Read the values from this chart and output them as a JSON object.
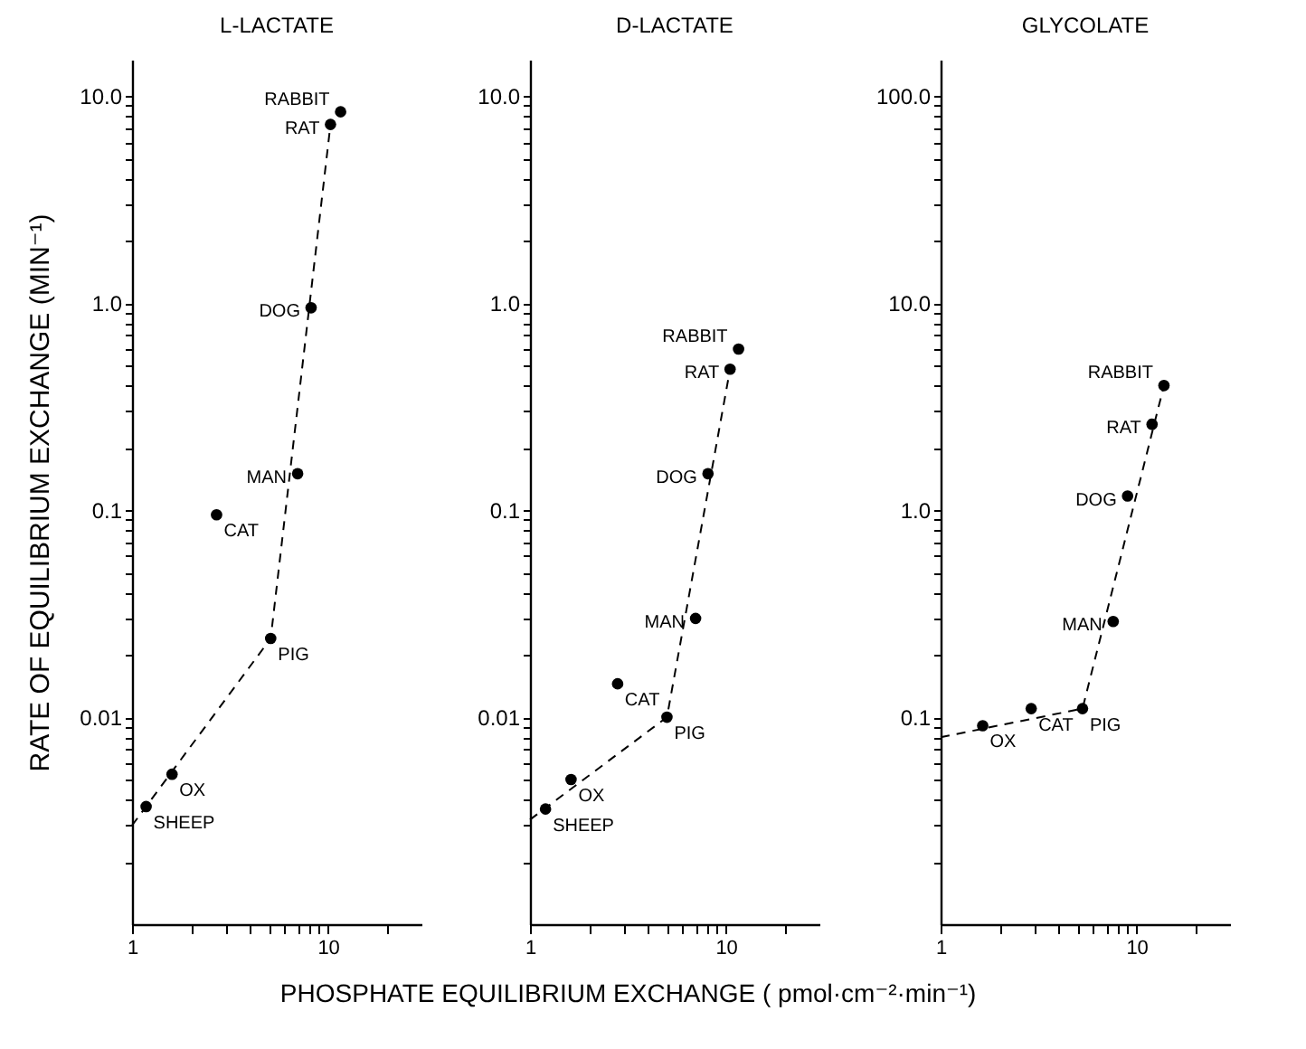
{
  "chart_data": [
    {
      "type": "scatter",
      "title": "L-LACTATE",
      "ylabel": "RATE OF EQUILIBRIUM EXCHANGE (MIN⁻¹)",
      "xlabel": "PHOSPHATE EQUILIBRIUM EXCHANGE   ( pmol·cm⁻²·min⁻¹)",
      "log": "xy",
      "grid": false,
      "marker": "circle",
      "xlim": [
        1,
        30
      ],
      "ylim": [
        0.001,
        15
      ],
      "xticks": [
        {
          "value": 1,
          "label": "1"
        },
        {
          "value": 2,
          "label": null
        },
        {
          "value": 3,
          "label": null
        },
        {
          "value": 4,
          "label": null
        },
        {
          "value": 5,
          "label": null
        },
        {
          "value": 6,
          "label": null
        },
        {
          "value": 7,
          "label": null
        },
        {
          "value": 8,
          "label": null
        },
        {
          "value": 9,
          "label": null
        },
        {
          "value": 10,
          "label": "10"
        },
        {
          "value": 20,
          "label": null
        }
      ],
      "yticks": [
        {
          "value": 0.002,
          "label": null
        },
        {
          "value": 0.003,
          "label": null
        },
        {
          "value": 0.004,
          "label": null
        },
        {
          "value": 0.005,
          "label": null
        },
        {
          "value": 0.006,
          "label": null
        },
        {
          "value": 0.007,
          "label": null
        },
        {
          "value": 0.008,
          "label": null
        },
        {
          "value": 0.009,
          "label": null
        },
        {
          "value": 0.01,
          "label": "0.01"
        },
        {
          "value": 0.02,
          "label": null
        },
        {
          "value": 0.03,
          "label": null
        },
        {
          "value": 0.04,
          "label": null
        },
        {
          "value": 0.05,
          "label": null
        },
        {
          "value": 0.06,
          "label": null
        },
        {
          "value": 0.07,
          "label": null
        },
        {
          "value": 0.08,
          "label": null
        },
        {
          "value": 0.09,
          "label": null
        },
        {
          "value": 0.1,
          "label": "0.1"
        },
        {
          "value": 0.2,
          "label": null
        },
        {
          "value": 0.3,
          "label": null
        },
        {
          "value": 0.4,
          "label": null
        },
        {
          "value": 0.5,
          "label": null
        },
        {
          "value": 0.6,
          "label": null
        },
        {
          "value": 0.7,
          "label": null
        },
        {
          "value": 0.8,
          "label": null
        },
        {
          "value": 0.9,
          "label": null
        },
        {
          "value": 1,
          "label": "1.0"
        },
        {
          "value": 2,
          "label": null
        },
        {
          "value": 3,
          "label": null
        },
        {
          "value": 4,
          "label": null
        },
        {
          "value": 5,
          "label": null
        },
        {
          "value": 6,
          "label": null
        },
        {
          "value": 7,
          "label": null
        },
        {
          "value": 8,
          "label": null
        },
        {
          "value": 9,
          "label": null
        },
        {
          "value": 10,
          "label": "10.0"
        }
      ],
      "series": [
        {
          "type": "scatter",
          "color": "#000000",
          "x": [
            11.6,
            10.3,
            8.2,
            7.0,
            2.7,
            5.1,
            1.6,
            1.18
          ],
          "values": [
            8.4,
            7.3,
            0.95,
            0.15,
            0.095,
            0.024,
            0.0053,
            0.0037
          ]
        },
        {
          "type": "line",
          "line_style": "dashed",
          "marker": "none",
          "color": "#000000",
          "x": [
            1,
            5.1,
            10.3
          ],
          "values": [
            0.003,
            0.024,
            7.3
          ]
        }
      ],
      "annotations": [
        {
          "text": "RABBIT",
          "x": 11.6,
          "y": 8.4
        },
        {
          "text": "RAT",
          "x": 10.3,
          "y": 7.3
        },
        {
          "text": "DOG",
          "x": 8.2,
          "y": 0.95
        },
        {
          "text": "MAN",
          "x": 7.0,
          "y": 0.15
        },
        {
          "text": "CAT",
          "x": 2.7,
          "y": 0.095
        },
        {
          "text": "PIG",
          "x": 5.1,
          "y": 0.024
        },
        {
          "text": "OX",
          "x": 1.6,
          "y": 0.0053
        },
        {
          "text": "SHEEP",
          "x": 1.18,
          "y": 0.0037
        }
      ]
    },
    {
      "type": "scatter",
      "title": "D-LACTATE",
      "log": "xy",
      "grid": false,
      "marker": "circle",
      "xlim": [
        1,
        30
      ],
      "ylim": [
        0.001,
        15
      ],
      "xticks": [
        {
          "value": 1,
          "label": "1"
        },
        {
          "value": 2,
          "label": null
        },
        {
          "value": 3,
          "label": null
        },
        {
          "value": 4,
          "label": null
        },
        {
          "value": 5,
          "label": null
        },
        {
          "value": 6,
          "label": null
        },
        {
          "value": 7,
          "label": null
        },
        {
          "value": 8,
          "label": null
        },
        {
          "value": 9,
          "label": null
        },
        {
          "value": 10,
          "label": "10"
        },
        {
          "value": 20,
          "label": null
        }
      ],
      "yticks": [
        {
          "value": 0.002,
          "label": null
        },
        {
          "value": 0.003,
          "label": null
        },
        {
          "value": 0.004,
          "label": null
        },
        {
          "value": 0.005,
          "label": null
        },
        {
          "value": 0.006,
          "label": null
        },
        {
          "value": 0.007,
          "label": null
        },
        {
          "value": 0.008,
          "label": null
        },
        {
          "value": 0.009,
          "label": null
        },
        {
          "value": 0.01,
          "label": "0.01"
        },
        {
          "value": 0.02,
          "label": null
        },
        {
          "value": 0.03,
          "label": null
        },
        {
          "value": 0.04,
          "label": null
        },
        {
          "value": 0.05,
          "label": null
        },
        {
          "value": 0.06,
          "label": null
        },
        {
          "value": 0.07,
          "label": null
        },
        {
          "value": 0.08,
          "label": null
        },
        {
          "value": 0.09,
          "label": null
        },
        {
          "value": 0.1,
          "label": "0.1"
        },
        {
          "value": 0.2,
          "label": null
        },
        {
          "value": 0.3,
          "label": null
        },
        {
          "value": 0.4,
          "label": null
        },
        {
          "value": 0.5,
          "label": null
        },
        {
          "value": 0.6,
          "label": null
        },
        {
          "value": 0.7,
          "label": null
        },
        {
          "value": 0.8,
          "label": null
        },
        {
          "value": 0.9,
          "label": null
        },
        {
          "value": 1,
          "label": "1.0"
        },
        {
          "value": 2,
          "label": null
        },
        {
          "value": 3,
          "label": null
        },
        {
          "value": 4,
          "label": null
        },
        {
          "value": 5,
          "label": null
        },
        {
          "value": 6,
          "label": null
        },
        {
          "value": 7,
          "label": null
        },
        {
          "value": 8,
          "label": null
        },
        {
          "value": 9,
          "label": null
        },
        {
          "value": 10,
          "label": "10.0"
        }
      ],
      "series": [
        {
          "type": "scatter",
          "color": "#000000",
          "x": [
            11.6,
            10.5,
            8.1,
            7.0,
            2.8,
            5.0,
            1.62,
            1.2
          ],
          "values": [
            0.6,
            0.48,
            0.15,
            0.03,
            0.0145,
            0.01,
            0.005,
            0.0036
          ]
        },
        {
          "type": "line",
          "line_style": "dashed",
          "marker": "none",
          "color": "#000000",
          "x": [
            1,
            5.0,
            10.5
          ],
          "values": [
            0.0032,
            0.01,
            0.48
          ]
        }
      ],
      "annotations": [
        {
          "text": "RABBIT",
          "x": 11.6,
          "y": 0.6
        },
        {
          "text": "RAT",
          "x": 10.5,
          "y": 0.48
        },
        {
          "text": "DOG",
          "x": 8.1,
          "y": 0.15
        },
        {
          "text": "MAN",
          "x": 7.0,
          "y": 0.03
        },
        {
          "text": "CAT",
          "x": 2.8,
          "y": 0.0145
        },
        {
          "text": "PIG",
          "x": 5.0,
          "y": 0.01
        },
        {
          "text": "OX",
          "x": 1.62,
          "y": 0.005
        },
        {
          "text": "SHEEP",
          "x": 1.2,
          "y": 0.0036
        }
      ]
    },
    {
      "type": "scatter",
      "title": "GLYCOLATE",
      "log": "xy",
      "grid": false,
      "marker": "circle",
      "xlim": [
        1,
        30
      ],
      "ylim": [
        0.01,
        150
      ],
      "xticks": [
        {
          "value": 1,
          "label": "1"
        },
        {
          "value": 2,
          "label": null
        },
        {
          "value": 3,
          "label": null
        },
        {
          "value": 4,
          "label": null
        },
        {
          "value": 5,
          "label": null
        },
        {
          "value": 6,
          "label": null
        },
        {
          "value": 7,
          "label": null
        },
        {
          "value": 8,
          "label": null
        },
        {
          "value": 9,
          "label": null
        },
        {
          "value": 10,
          "label": "10"
        },
        {
          "value": 20,
          "label": null
        }
      ],
      "yticks": [
        {
          "value": 0.02,
          "label": null
        },
        {
          "value": 0.03,
          "label": null
        },
        {
          "value": 0.04,
          "label": null
        },
        {
          "value": 0.05,
          "label": null
        },
        {
          "value": 0.06,
          "label": null
        },
        {
          "value": 0.07,
          "label": null
        },
        {
          "value": 0.08,
          "label": null
        },
        {
          "value": 0.09,
          "label": null
        },
        {
          "value": 0.1,
          "label": "0.1"
        },
        {
          "value": 0.2,
          "label": null
        },
        {
          "value": 0.3,
          "label": null
        },
        {
          "value": 0.4,
          "label": null
        },
        {
          "value": 0.5,
          "label": null
        },
        {
          "value": 0.6,
          "label": null
        },
        {
          "value": 0.7,
          "label": null
        },
        {
          "value": 0.8,
          "label": null
        },
        {
          "value": 0.9,
          "label": null
        },
        {
          "value": 1,
          "label": "1.0"
        },
        {
          "value": 2,
          "label": null
        },
        {
          "value": 3,
          "label": null
        },
        {
          "value": 4,
          "label": null
        },
        {
          "value": 5,
          "label": null
        },
        {
          "value": 6,
          "label": null
        },
        {
          "value": 7,
          "label": null
        },
        {
          "value": 8,
          "label": null
        },
        {
          "value": 9,
          "label": null
        },
        {
          "value": 10,
          "label": "10.0"
        },
        {
          "value": 20,
          "label": null
        },
        {
          "value": 30,
          "label": null
        },
        {
          "value": 40,
          "label": null
        },
        {
          "value": 50,
          "label": null
        },
        {
          "value": 60,
          "label": null
        },
        {
          "value": 70,
          "label": null
        },
        {
          "value": 80,
          "label": null
        },
        {
          "value": 90,
          "label": null
        },
        {
          "value": 100,
          "label": "100.0"
        }
      ],
      "series": [
        {
          "type": "scatter",
          "color": "#000000",
          "x": [
            13.8,
            12.0,
            9.0,
            7.6,
            5.3,
            2.9,
            1.64
          ],
          "values": [
            4.0,
            2.6,
            1.17,
            0.29,
            0.11,
            0.11,
            0.091
          ]
        },
        {
          "type": "line",
          "line_style": "dashed",
          "marker": "none",
          "color": "#000000",
          "x": [
            1,
            5.3,
            13.8
          ],
          "values": [
            0.08,
            0.11,
            4.0
          ]
        }
      ],
      "annotations": [
        {
          "text": "RABBIT",
          "x": 13.8,
          "y": 4.0
        },
        {
          "text": "RAT",
          "x": 12.0,
          "y": 2.6
        },
        {
          "text": "DOG",
          "x": 9.0,
          "y": 1.17
        },
        {
          "text": "MAN",
          "x": 7.6,
          "y": 0.29
        },
        {
          "text": "PIG",
          "x": 5.3,
          "y": 0.11
        },
        {
          "text": "CAT",
          "x": 2.9,
          "y": 0.11
        },
        {
          "text": "OX",
          "x": 1.64,
          "y": 0.091
        }
      ]
    }
  ]
}
